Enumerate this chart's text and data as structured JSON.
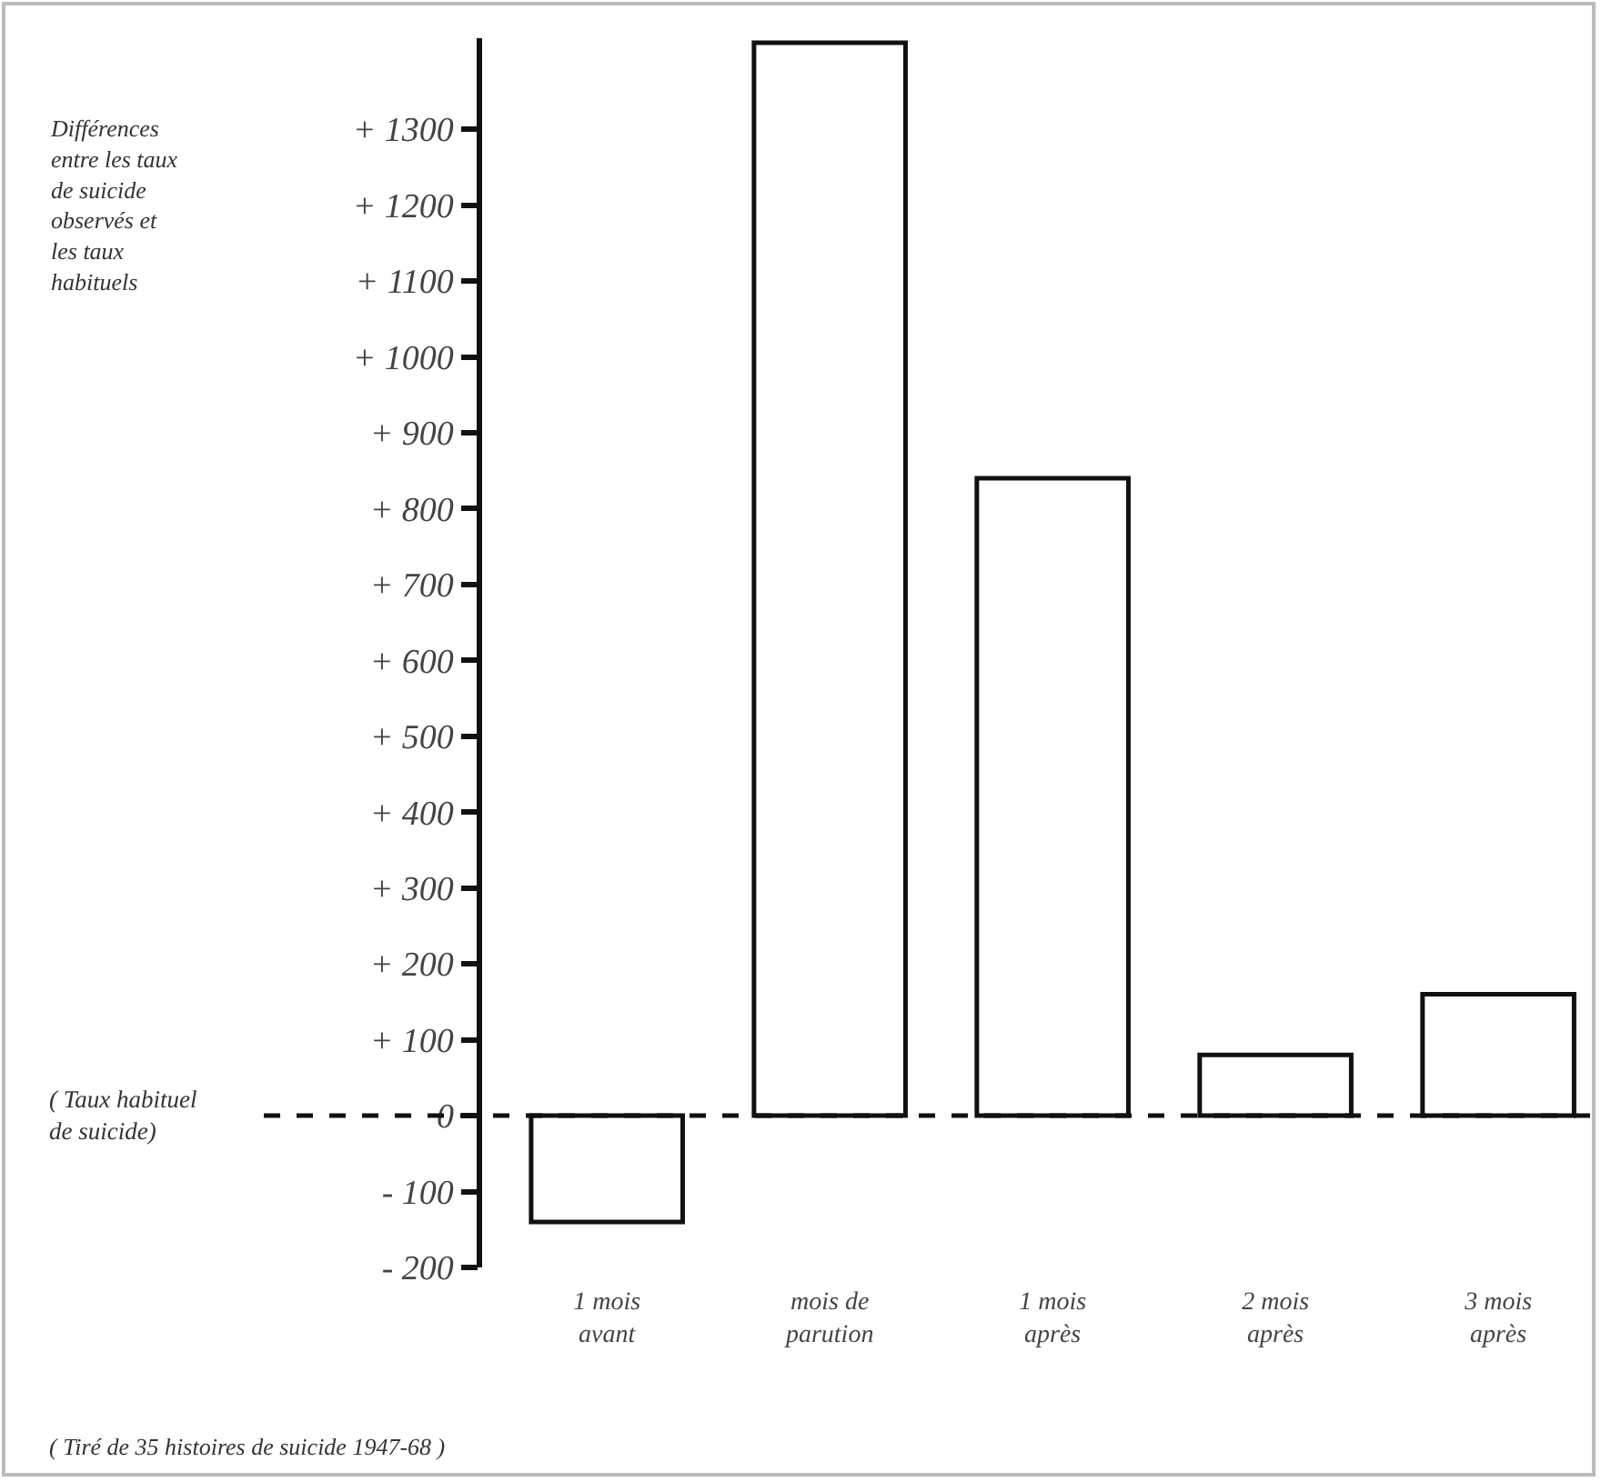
{
  "chart_data": {
    "type": "bar",
    "categories": [
      "1 mois\navant",
      "mois de\nparution",
      "1 mois\naprès",
      "2 mois\naprès",
      "3 mois\naprès"
    ],
    "values": [
      -140,
      1414,
      840,
      80,
      160
    ],
    "color": "#ffffff",
    "ylim": [
      -200,
      1420
    ],
    "yticks": [
      {
        "value": -200,
        "label": "- 200"
      },
      {
        "value": -100,
        "label": "- 100"
      },
      0,
      {
        "value": 100,
        "label": "+ 100"
      },
      {
        "value": 200,
        "label": "+ 200"
      },
      {
        "value": 300,
        "label": "+ 300"
      },
      {
        "value": 400,
        "label": "+ 400"
      },
      {
        "value": 500,
        "label": "+ 500"
      },
      {
        "value": 600,
        "label": "+ 600"
      },
      {
        "value": 700,
        "label": "+ 700"
      },
      {
        "value": 800,
        "label": "+ 800"
      },
      {
        "value": 900,
        "label": "+ 900"
      },
      {
        "value": 1000,
        "label": "+ 1000"
      },
      {
        "value": 1100,
        "label": "+ 1100"
      },
      {
        "value": 1200,
        "label": "+ 1200"
      },
      {
        "value": 1300,
        "label": "+ 1300"
      }
    ],
    "ref_lines": [
      {
        "axis": "y",
        "value": 0,
        "label": "( Taux habituel\nde suicide)",
        "line_style": "dashed"
      }
    ],
    "annotations": [
      "Différences\nentre les taux\nde suicide\nobservés et\nles taux\nhabituels",
      "( Tiré de 35 histoires de suicide 1947-68 )"
    ]
  }
}
